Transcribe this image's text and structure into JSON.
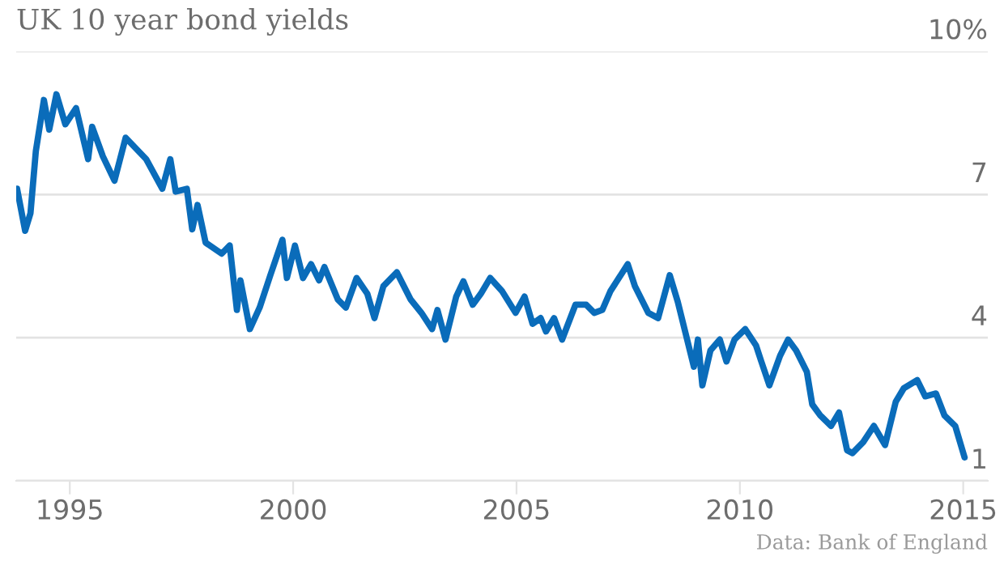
{
  "chart_data": {
    "type": "line",
    "title": "UK 10 year bond yields",
    "annotations": [
      "Data: Bank of England"
    ],
    "x": [
      1993.82,
      1994.0,
      1994.12,
      1994.24,
      1994.42,
      1994.54,
      1994.7,
      1994.9,
      1995.14,
      1995.41,
      1995.5,
      1995.74,
      1996.0,
      1996.25,
      1996.71,
      1997.07,
      1997.25,
      1997.37,
      1997.62,
      1997.74,
      1997.86,
      1998.04,
      1998.4,
      1998.58,
      1998.74,
      1998.82,
      1999.03,
      1999.25,
      1999.49,
      1999.76,
      1999.86,
      2000.04,
      2000.22,
      2000.4,
      2000.58,
      2000.7,
      2001.0,
      2001.18,
      2001.42,
      2001.66,
      2001.82,
      2002.02,
      2002.32,
      2002.63,
      2002.87,
      2003.11,
      2003.23,
      2003.41,
      2003.65,
      2003.81,
      2004.02,
      2004.2,
      2004.41,
      2004.68,
      2004.98,
      2005.18,
      2005.36,
      2005.54,
      2005.66,
      2005.84,
      2006.02,
      2006.32,
      2006.56,
      2006.74,
      2006.92,
      2007.1,
      2007.49,
      2007.65,
      2007.95,
      2008.17,
      2008.43,
      2008.61,
      2008.97,
      2009.06,
      2009.16,
      2009.34,
      2009.55,
      2009.7,
      2009.88,
      2010.12,
      2010.36,
      2010.48,
      2010.66,
      2010.9,
      2011.08,
      2011.26,
      2011.5,
      2011.62,
      2011.8,
      2012.04,
      2012.22,
      2012.4,
      2012.52,
      2012.76,
      2013.0,
      2013.25,
      2013.49,
      2013.67,
      2013.97,
      2014.15,
      2014.39,
      2014.58,
      2014.82,
      2015.03
    ],
    "series": [
      {
        "color": "#0a6cba",
        "values": [
          7.12,
          6.24,
          6.61,
          7.91,
          8.98,
          8.36,
          9.1,
          8.47,
          8.81,
          7.74,
          8.42,
          7.8,
          7.29,
          8.19,
          7.74,
          7.12,
          7.74,
          7.06,
          7.12,
          6.27,
          6.78,
          5.99,
          5.76,
          5.93,
          4.58,
          5.2,
          4.18,
          4.63,
          5.31,
          6.05,
          5.25,
          5.93,
          5.25,
          5.54,
          5.2,
          5.48,
          4.8,
          4.63,
          5.25,
          4.92,
          4.41,
          5.08,
          5.37,
          4.8,
          4.52,
          4.18,
          4.58,
          3.96,
          4.86,
          5.18,
          4.69,
          4.92,
          5.25,
          4.97,
          4.52,
          4.86,
          4.29,
          4.41,
          4.13,
          4.41,
          3.96,
          4.69,
          4.69,
          4.52,
          4.58,
          4.97,
          5.54,
          5.08,
          4.52,
          4.41,
          5.31,
          4.75,
          3.39,
          3.96,
          3.0,
          3.73,
          3.96,
          3.5,
          3.96,
          4.18,
          3.84,
          3.5,
          3.0,
          3.62,
          3.96,
          3.73,
          3.28,
          2.6,
          2.37,
          2.15,
          2.43,
          1.64,
          1.58,
          1.81,
          2.15,
          1.75,
          2.66,
          2.94,
          3.11,
          2.77,
          2.83,
          2.37,
          2.15,
          1.49
        ]
      }
    ],
    "xlim": [
      1993.8,
      2015.55
    ],
    "xticks": [
      1995,
      2000,
      2005,
      2010,
      2015
    ],
    "ylim": [
      1,
      10
    ],
    "yticks": [
      1,
      4,
      7,
      {
        "value": 10,
        "label": "10%"
      }
    ],
    "grid": "y",
    "legend": false
  }
}
